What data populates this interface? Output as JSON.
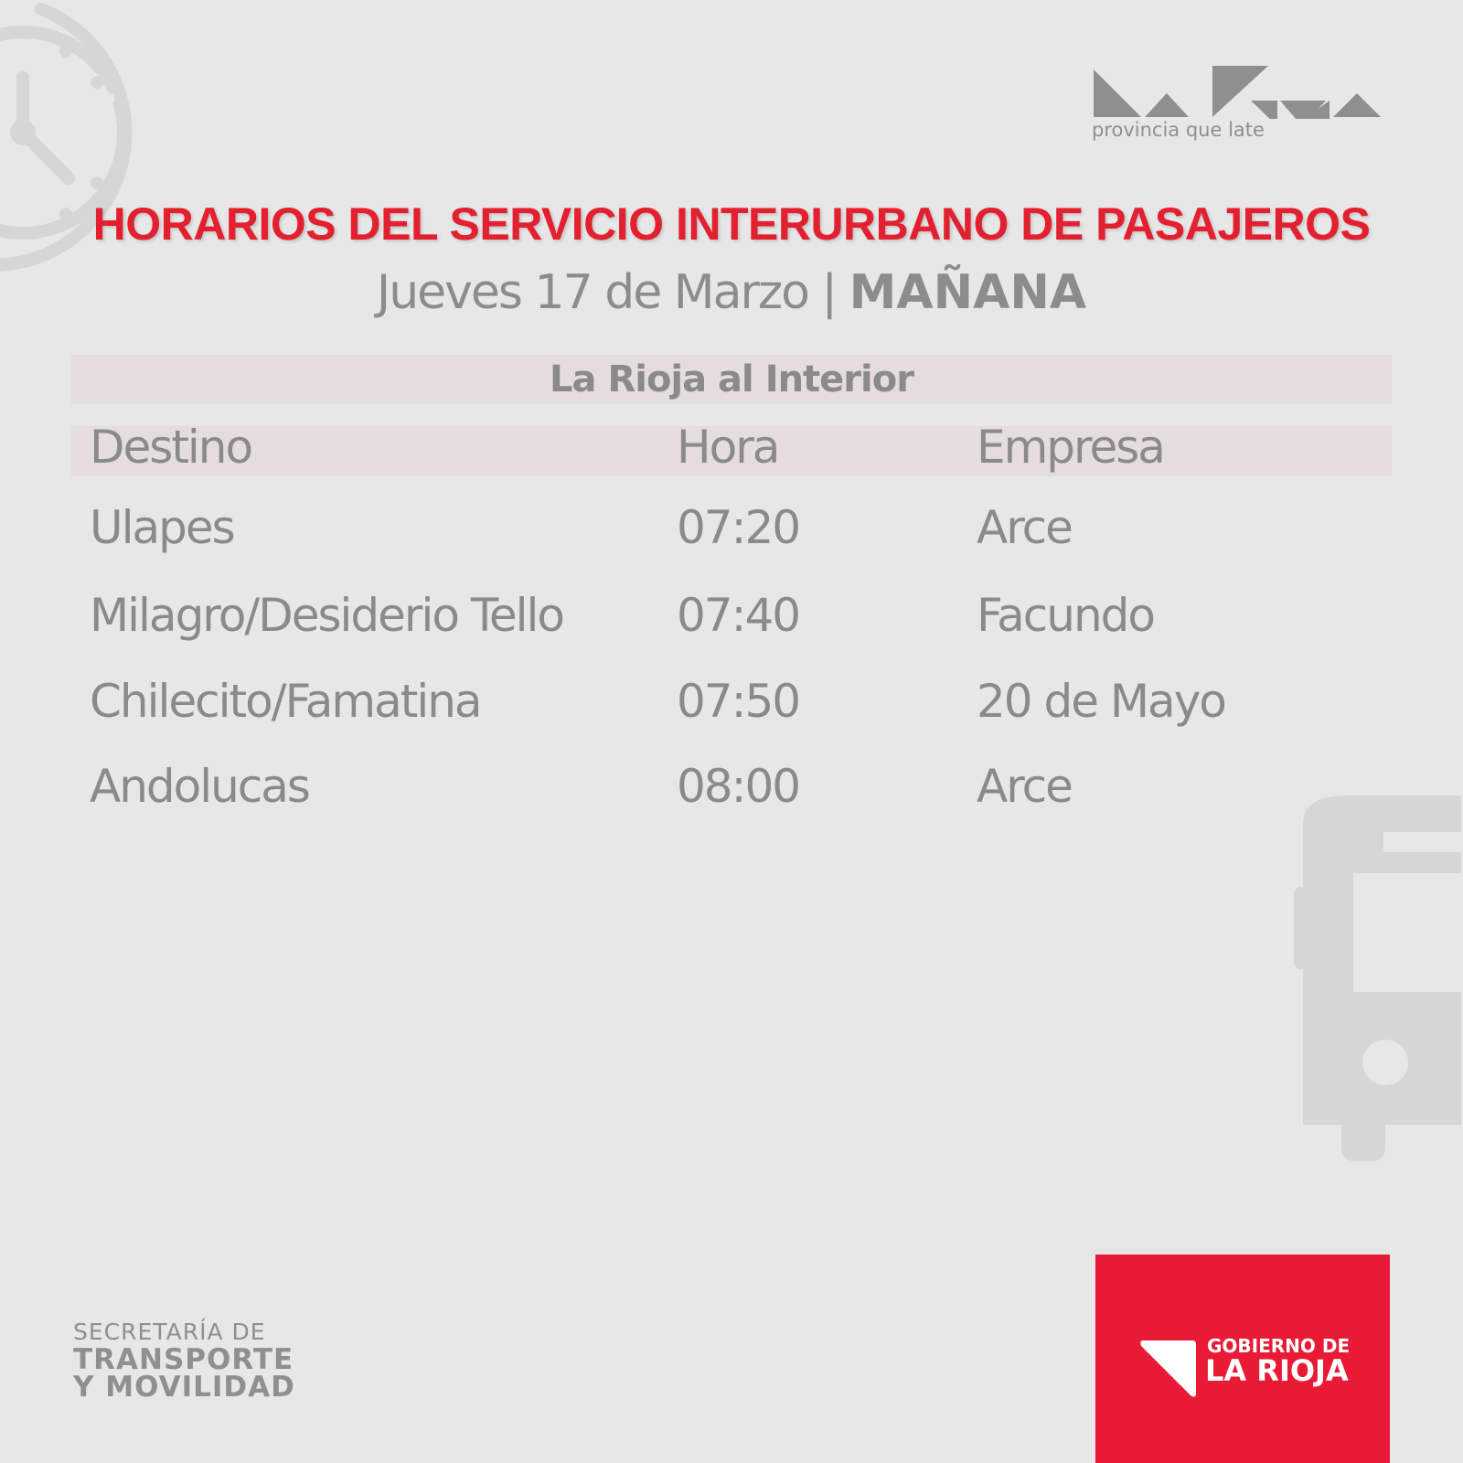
{
  "brand": {
    "logo_text": "La Rioja",
    "tagline": "provincia que late",
    "accent": "#e2202f"
  },
  "header": {
    "title": "HORARIOS DEL SERVICIO INTERURBANO DE PASAJEROS",
    "date": "Jueves 17 de Marzo |",
    "period": "MAÑANA"
  },
  "section": {
    "title": "La Rioja al Interior"
  },
  "table": {
    "columns": [
      "Destino",
      "Hora",
      "Empresa"
    ],
    "rows": [
      [
        "Ulapes",
        "07:20",
        "Arce"
      ],
      [
        "Milagro/Desiderio Tello",
        "07:40",
        "Facundo"
      ],
      [
        "Chilecito/Famatina",
        "07:50",
        "20 de Mayo"
      ],
      [
        "Andolucas",
        "08:00",
        "Arce"
      ]
    ]
  },
  "footer": {
    "secretaria": [
      "SECRETARÍA DE",
      "TRANSPORTE",
      "Y MOVILIDAD"
    ],
    "gobierno": [
      "GOBIERNO DE",
      "LA RIOJA"
    ],
    "gobierno_color": "#e81a35"
  },
  "icons": [
    "clock-icon",
    "bus-icon"
  ]
}
